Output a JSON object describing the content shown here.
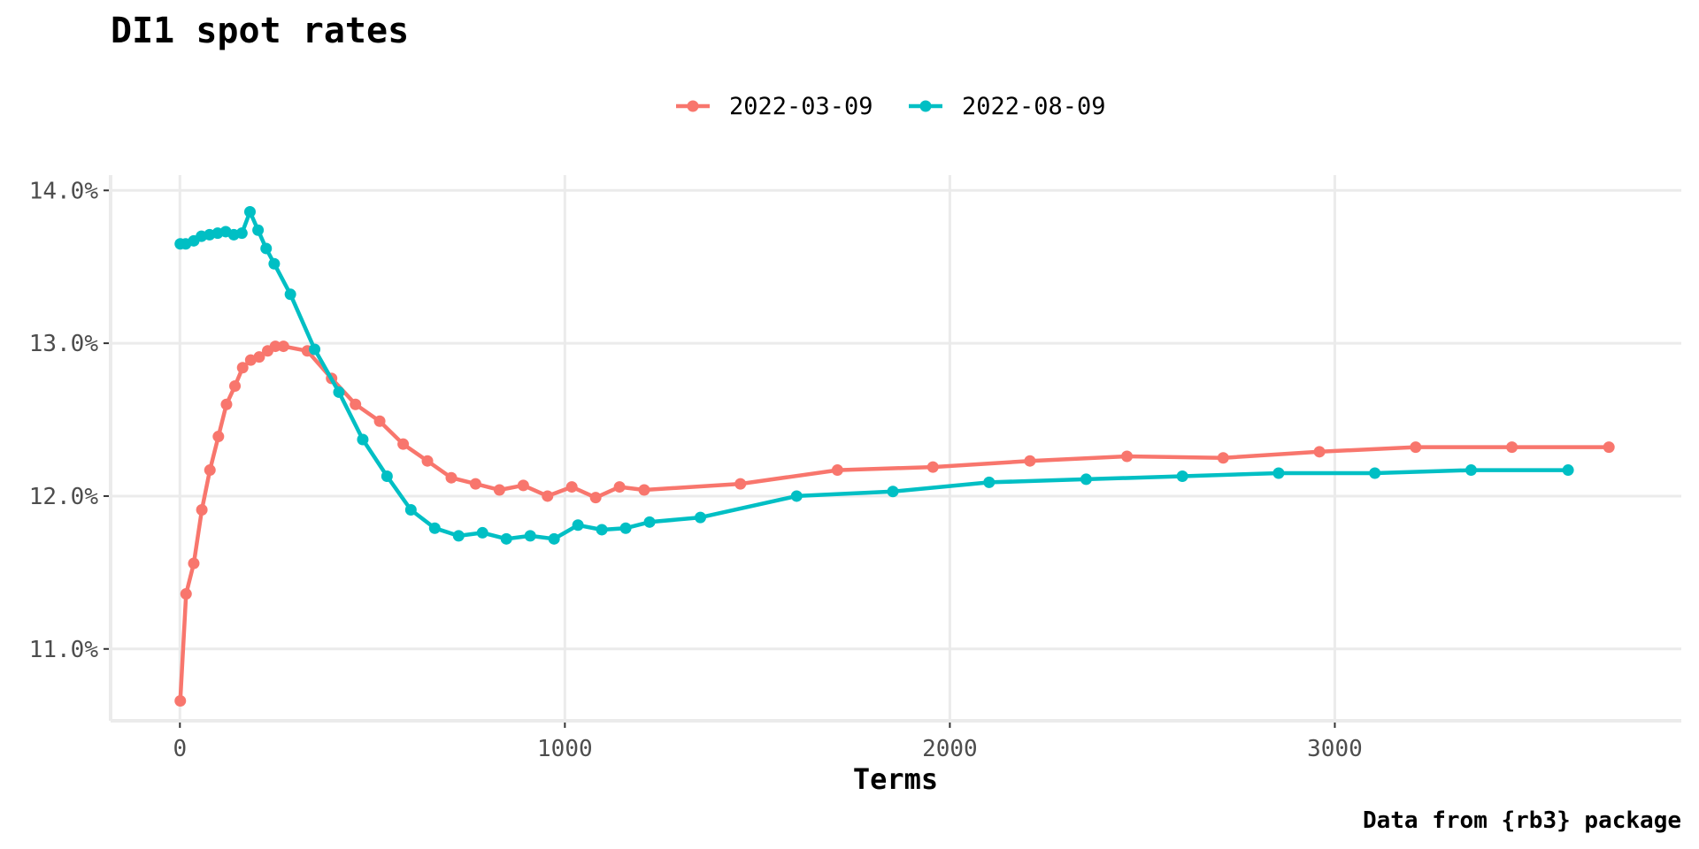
{
  "chart_data": {
    "type": "line",
    "title": "DI1 spot rates",
    "xlabel": "Terms",
    "ylabel": "",
    "caption": "Data from {rb3} package",
    "legend_position": "top",
    "grid": true,
    "xlim": [
      -180,
      3900
    ],
    "ylim": [
      10.53,
      14.1
    ],
    "x_ticks": [
      0,
      1000,
      2000,
      3000
    ],
    "x_tick_labels": [
      "0",
      "1000",
      "2000",
      "3000"
    ],
    "y_ticks": [
      11,
      12,
      13,
      14
    ],
    "y_tick_labels": [
      "11.0%",
      "12.0%",
      "13.0%",
      "14.0%"
    ],
    "series": [
      {
        "name": "2022-03-09",
        "color": "#F8766D",
        "x": [
          1,
          16,
          36,
          57,
          78,
          100,
          121,
          143,
          163,
          184,
          206,
          228,
          248,
          269,
          331,
          394,
          456,
          519,
          580,
          643,
          705,
          768,
          830,
          892,
          955,
          1018,
          1080,
          1142,
          1206,
          1456,
          1708,
          1956,
          2208,
          2460,
          2710,
          2960,
          3210,
          3460,
          3712
        ],
        "y": [
          10.66,
          11.36,
          11.56,
          11.91,
          12.17,
          12.39,
          12.6,
          12.72,
          12.84,
          12.89,
          12.91,
          12.95,
          12.98,
          12.98,
          12.95,
          12.77,
          12.6,
          12.49,
          12.34,
          12.23,
          12.12,
          12.08,
          12.04,
          12.07,
          12.0,
          12.06,
          11.99,
          12.06,
          12.04,
          12.08,
          12.17,
          12.19,
          12.23,
          12.26,
          12.25,
          12.29,
          12.32,
          12.32,
          12.32
        ]
      },
      {
        "name": "2022-08-09",
        "color": "#00BFC4",
        "x": [
          1,
          15,
          36,
          56,
          77,
          98,
          119,
          140,
          161,
          182,
          203,
          224,
          245,
          287,
          350,
          413,
          475,
          538,
          600,
          662,
          724,
          786,
          848,
          910,
          972,
          1034,
          1096,
          1158,
          1220,
          1352,
          1602,
          1852,
          2102,
          2354,
          2604,
          2854,
          3104,
          3354,
          3606
        ],
        "y": [
          13.65,
          13.65,
          13.67,
          13.7,
          13.71,
          13.72,
          13.73,
          13.71,
          13.72,
          13.86,
          13.74,
          13.62,
          13.52,
          13.32,
          12.96,
          12.68,
          12.37,
          12.13,
          11.91,
          11.79,
          11.74,
          11.76,
          11.72,
          11.74,
          11.72,
          11.81,
          11.78,
          11.79,
          11.83,
          11.86,
          12.0,
          12.03,
          12.09,
          12.11,
          12.13,
          12.15,
          12.15,
          12.17,
          12.17
        ]
      }
    ]
  }
}
